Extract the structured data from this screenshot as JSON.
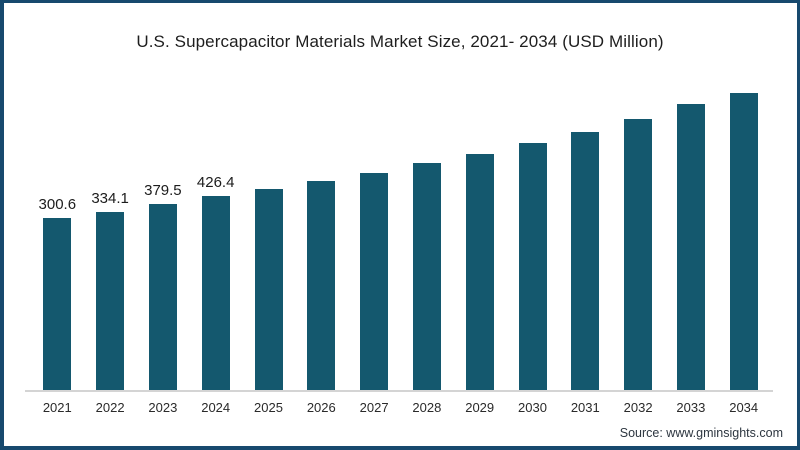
{
  "title": "U.S. Supercapacitor Materials Market Size, 2021- 2034 (USD Million)",
  "source": "Source: www.gminsights.com",
  "colors": {
    "bar": "#14586e",
    "frame_border": "#17496e",
    "axis_line": "#d4d4d4",
    "title_text": "#1e1e1e",
    "tick_text": "#2a2a2a"
  },
  "chart_data": {
    "type": "bar",
    "title": "U.S. Supercapacitor Materials Market Size, 2021- 2034 (USD Million)",
    "categories": [
      "2021",
      "2022",
      "2023",
      "2024",
      "2025",
      "2026",
      "2027",
      "2028",
      "2029",
      "2030",
      "2031",
      "2032",
      "2033",
      "2034"
    ],
    "values": [
      300.6,
      334.1,
      379.5,
      426.4,
      466,
      510,
      559,
      613,
      666,
      728,
      794,
      868,
      951,
      1017
    ],
    "data_labels": [
      "300.6",
      "334.1",
      "379.5",
      "426.4",
      "",
      "",
      "",
      "",
      "",
      "",
      "",
      "",
      "",
      ""
    ],
    "xlabel": "",
    "ylabel": "",
    "value_axis_visible": false,
    "gridlines": false,
    "legend_position": "none",
    "bar_color": "#14586e",
    "units": "USD Million"
  }
}
